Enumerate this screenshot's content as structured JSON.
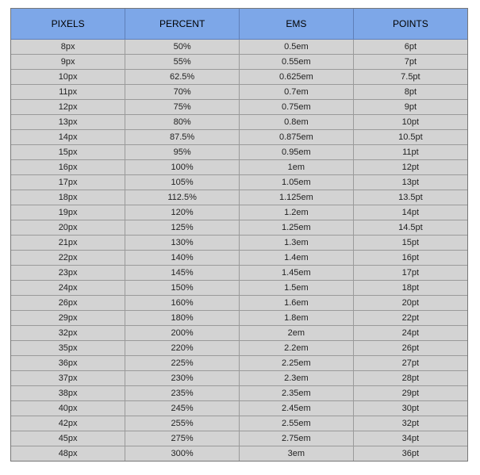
{
  "table": {
    "headers": [
      "PIXELS",
      "PERCENT",
      "EMS",
      "POINTS"
    ],
    "rows": [
      [
        "8px",
        "50%",
        "0.5em",
        "6pt"
      ],
      [
        "9px",
        "55%",
        "0.55em",
        "7pt"
      ],
      [
        "10px",
        "62.5%",
        "0.625em",
        "7.5pt"
      ],
      [
        "11px",
        "70%",
        "0.7em",
        "8pt"
      ],
      [
        "12px",
        "75%",
        "0.75em",
        "9pt"
      ],
      [
        "13px",
        "80%",
        "0.8em",
        "10pt"
      ],
      [
        "14px",
        "87.5%",
        "0.875em",
        "10.5pt"
      ],
      [
        "15px",
        "95%",
        "0.95em",
        "11pt"
      ],
      [
        "16px",
        "100%",
        "1em",
        "12pt"
      ],
      [
        "17px",
        "105%",
        "1.05em",
        "13pt"
      ],
      [
        "18px",
        "112.5%",
        "1.125em",
        "13.5pt"
      ],
      [
        "19px",
        "120%",
        "1.2em",
        "14pt"
      ],
      [
        "20px",
        "125%",
        "1.25em",
        "14.5pt"
      ],
      [
        "21px",
        "130%",
        "1.3em",
        "15pt"
      ],
      [
        "22px",
        "140%",
        "1.4em",
        "16pt"
      ],
      [
        "23px",
        "145%",
        "1.45em",
        "17pt"
      ],
      [
        "24px",
        "150%",
        "1.5em",
        "18pt"
      ],
      [
        "26px",
        "160%",
        "1.6em",
        "20pt"
      ],
      [
        "29px",
        "180%",
        "1.8em",
        "22pt"
      ],
      [
        "32px",
        "200%",
        "2em",
        "24pt"
      ],
      [
        "35px",
        "220%",
        "2.2em",
        "26pt"
      ],
      [
        "36px",
        "225%",
        "2.25em",
        "27pt"
      ],
      [
        "37px",
        "230%",
        "2.3em",
        "28pt"
      ],
      [
        "38px",
        "235%",
        "2.35em",
        "29pt"
      ],
      [
        "40px",
        "245%",
        "2.45em",
        "30pt"
      ],
      [
        "42px",
        "255%",
        "2.55em",
        "32pt"
      ],
      [
        "45px",
        "275%",
        "2.75em",
        "34pt"
      ],
      [
        "48px",
        "300%",
        "3em",
        "36pt"
      ]
    ]
  },
  "colors": {
    "header_background": "#7da7e8",
    "row_background": "#d3d3d3",
    "border": "#9a9a9a"
  }
}
